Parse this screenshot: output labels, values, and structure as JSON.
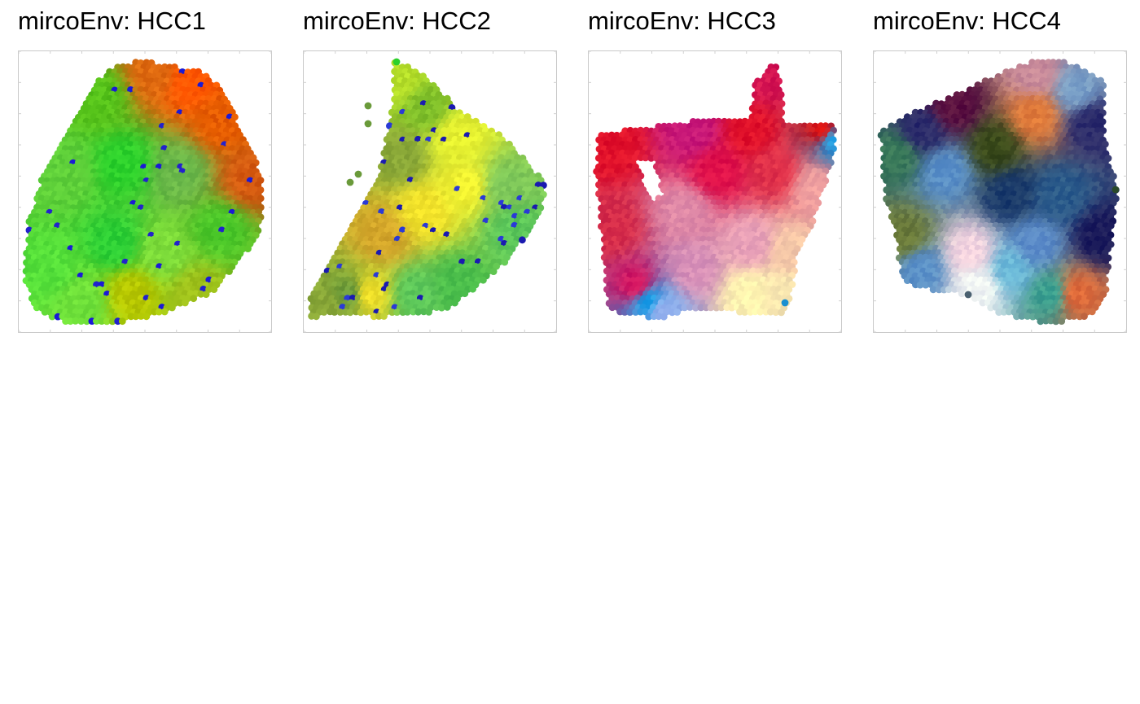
{
  "figure": {
    "panels": [
      {
        "title": "mircoEnv: HCC1"
      },
      {
        "title": "mircoEnv: HCC2"
      },
      {
        "title": "mircoEnv: HCC3"
      },
      {
        "title": "mircoEnv: HCC4"
      }
    ]
  },
  "chart_data": [
    {
      "type": "scatter",
      "title": "mircoEnv: HCC1",
      "xlabel": "",
      "ylabel": "",
      "grid": false,
      "marker": "filled-circle",
      "point_colors_by_region": [
        {
          "region": "upper-right edge",
          "colors": [
            "#ff5500",
            "#e65c00",
            "#d65a10"
          ]
        },
        {
          "region": "interior",
          "colors": [
            "#4fcf1f",
            "#2bd02b",
            "#6ab84a",
            "#7ddc3a",
            "#55e03a"
          ]
        },
        {
          "region": "lower-middle",
          "colors": [
            "#b8c800",
            "#9ec01a"
          ]
        },
        {
          "region": "scattered spots",
          "colors": [
            "#1a1ad6"
          ]
        }
      ]
    },
    {
      "type": "scatter",
      "title": "mircoEnv: HCC2",
      "xlabel": "",
      "ylabel": "",
      "grid": false,
      "marker": "filled-circle",
      "point_colors_by_region": [
        {
          "region": "upper-left",
          "colors": [
            "#b7e02a",
            "#7fbf2a",
            "#e6f030"
          ]
        },
        {
          "region": "center",
          "colors": [
            "#f2e22a",
            "#d4a62a",
            "#8aa838"
          ]
        },
        {
          "region": "right",
          "colors": [
            "#5cc75a",
            "#7ec85a",
            "#4cbf4c"
          ]
        },
        {
          "region": "scattered spots",
          "colors": [
            "#2a3ad6",
            "#1a1ab0"
          ]
        }
      ]
    },
    {
      "type": "scatter",
      "title": "mircoEnv: HCC3",
      "xlabel": "",
      "ylabel": "",
      "grid": false,
      "marker": "filled-circle",
      "point_colors_by_region": [
        {
          "region": "top",
          "colors": [
            "#e0102a",
            "#d4145a",
            "#c81878"
          ]
        },
        {
          "region": "left",
          "colors": [
            "#d62c4a",
            "#cc2a6a"
          ]
        },
        {
          "region": "center",
          "colors": [
            "#e08aa8",
            "#e8a0b8"
          ]
        },
        {
          "region": "lower-right",
          "colors": [
            "#f5c8a8",
            "#f8e6b0",
            "#fff3b0"
          ]
        },
        {
          "region": "bottom-left corner",
          "colors": [
            "#1aa0e8",
            "#98b4f0"
          ]
        }
      ]
    },
    {
      "type": "scatter",
      "title": "mircoEnv: HCC4",
      "xlabel": "",
      "ylabel": "",
      "grid": false,
      "marker": "filled-circle",
      "point_colors_by_region": [
        {
          "region": "upper",
          "colors": [
            "#5a1040",
            "#2a2a6a",
            "#c88a9a",
            "#7aa0c8"
          ]
        },
        {
          "region": "center",
          "colors": [
            "#e07a3a",
            "#3a4a1a",
            "#1a3a6a",
            "#2a5a8a"
          ]
        },
        {
          "region": "left",
          "colors": [
            "#3a7a5a",
            "#5a90c8",
            "#6a7a3a"
          ]
        },
        {
          "region": "lower",
          "colors": [
            "#f2f6f4",
            "#f4d4e0",
            "#6ab8d8",
            "#e06a3a"
          ]
        }
      ]
    }
  ]
}
